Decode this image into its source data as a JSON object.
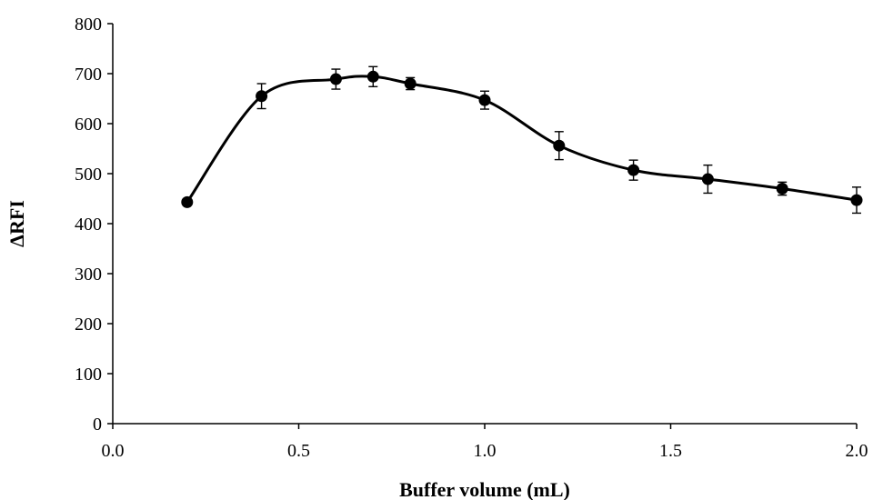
{
  "chart_data": {
    "type": "scatter",
    "smooth_line": true,
    "xlabel": "Buffer volume (mL)",
    "ylabel": "ΔRFI",
    "xlim": [
      0.0,
      2.0
    ],
    "ylim": [
      0,
      800
    ],
    "x_ticks": [
      "0.0",
      "0.5",
      "1.0",
      "1.5",
      "2.0"
    ],
    "y_ticks": [
      "0",
      "100",
      "200",
      "300",
      "400",
      "500",
      "600",
      "700",
      "800"
    ],
    "grid": false,
    "legend": "none",
    "series": [
      {
        "x": [
          0.2,
          0.4,
          0.6,
          0.7,
          0.8,
          1.0,
          1.2,
          1.4,
          1.6,
          1.8,
          2.0
        ],
        "y": [
          443,
          655,
          689,
          694,
          680,
          647,
          556,
          507,
          489,
          470,
          447
        ],
        "error": [
          0,
          25,
          20,
          20,
          12,
          18,
          28,
          20,
          28,
          13,
          26
        ],
        "color": "#000000"
      }
    ]
  }
}
